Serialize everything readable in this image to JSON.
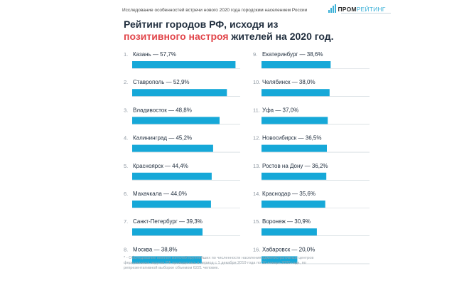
{
  "header": {
    "study_line": "Исследование особенностей встречи нового 2020 года городским населением России",
    "logo_main": "ПРОМ",
    "logo_accent": "РЕЙТИНГ"
  },
  "title": {
    "line1": "Рейтинг городов РФ, исходя из",
    "accent": "позитивного настроя",
    "line2_rest": " жителей на 2020 год."
  },
  "chart_data": {
    "type": "bar",
    "title": "Рейтинг городов РФ, исходя из позитивного настроя жителей на 2020 год.",
    "ylabel": "%",
    "bar_color": "#16a8d8",
    "items": [
      {
        "rank": "1.",
        "label": "Казань — 57,7%",
        "city": "Казань",
        "value": 57.7
      },
      {
        "rank": "2.",
        "label": "Ставрополь — 52,9%",
        "city": "Ставрополь",
        "value": 52.9
      },
      {
        "rank": "3.",
        "label": "Владивосток — 48,8%",
        "city": "Владивосток",
        "value": 48.8
      },
      {
        "rank": "4.",
        "label": "Калининград — 45,2%",
        "city": "Калининград",
        "value": 45.2
      },
      {
        "rank": "5.",
        "label": "Красноярск — 44,4%",
        "city": "Красноярск",
        "value": 44.4
      },
      {
        "rank": "6.",
        "label": "Махачкала — 44,0%",
        "city": "Махачкала",
        "value": 44.0
      },
      {
        "rank": "7.",
        "label": "Санкт-Петербург — 39,3%",
        "city": "Санкт-Петербург",
        "value": 39.3
      },
      {
        "rank": "8.",
        "label": "Москва — 38,8%",
        "city": "Москва",
        "value": 38.8
      },
      {
        "rank": "9.",
        "label": "Екатеринбург — 38,6%",
        "city": "Екатеринбург",
        "value": 38.6
      },
      {
        "rank": "10.",
        "label": "Челябинск — 38,0%",
        "city": "Челябинск",
        "value": 38.0
      },
      {
        "rank": "11.",
        "label": "Уфа — 37,0%",
        "city": "Уфа",
        "value": 37.0
      },
      {
        "rank": "12.",
        "label": "Новосибирск — 36,5%",
        "city": "Новосибирск",
        "value": 36.5
      },
      {
        "rank": "13.",
        "label": "Ростов на Дону — 36,2%",
        "city": "Ростов на Дону",
        "value": 36.2
      },
      {
        "rank": "14.",
        "label": "Краснодар — 35,6%",
        "city": "Краснодар",
        "value": 35.6
      },
      {
        "rank": "15.",
        "label": "Воронеж — 30,9%",
        "city": "Воронеж",
        "value": 30.9
      },
      {
        "rank": "16.",
        "label": "Хабаровск — 20,0%",
        "city": "Хабаровск",
        "value": 20.0
      }
    ]
  },
  "footnote": "* - Обследование мнения жителей крупнейших по численности населения административных центров федеральных округов РФ проводилось в период с 1 декабря 2019 года по 10 января 2020 года, по репрезентативной выборке объемом 6221 человек."
}
